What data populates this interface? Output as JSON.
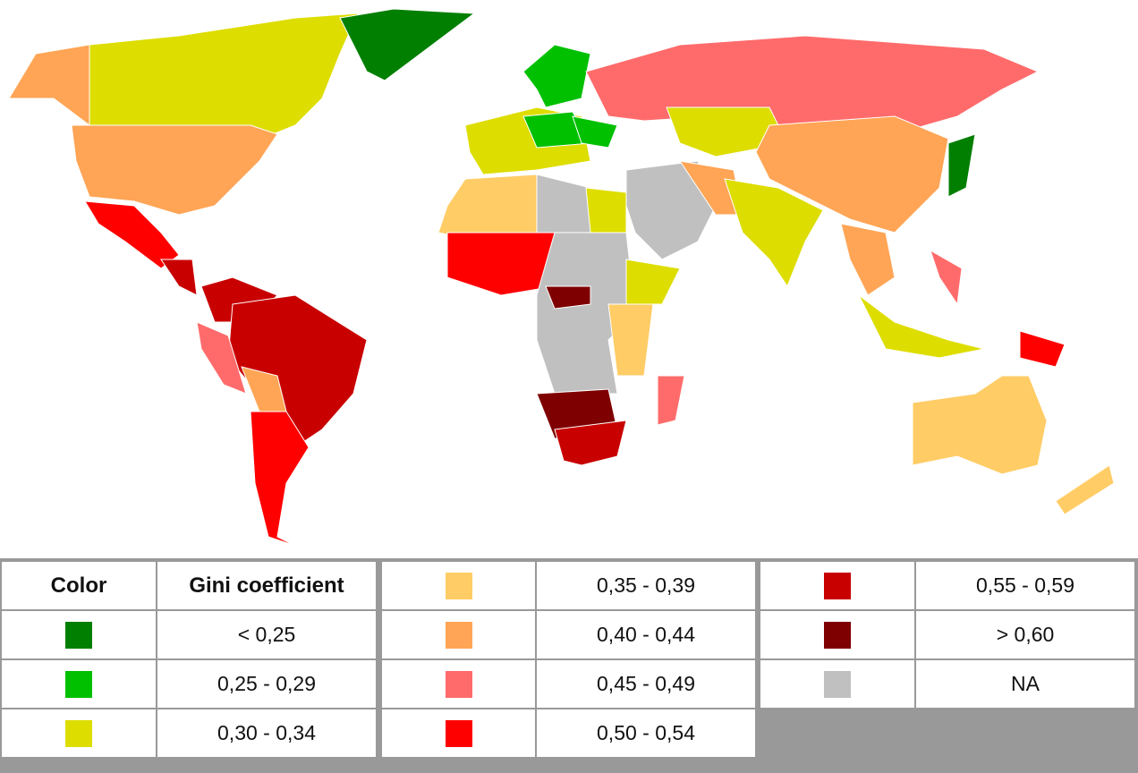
{
  "legend": {
    "header_color": "Color",
    "header_value": "Gini coefficient",
    "items": [
      {
        "key": "lt25",
        "label": "< 0,25",
        "color": "#007f00"
      },
      {
        "key": "g25",
        "label": "0,25 - 0,29",
        "color": "#00c000"
      },
      {
        "key": "g30",
        "label": "0,30 - 0,34",
        "color": "#dddd00"
      },
      {
        "key": "g35",
        "label": "0,35 - 0,39",
        "color": "#ffcc66"
      },
      {
        "key": "g40",
        "label": "0,40 - 0,44",
        "color": "#ffa555"
      },
      {
        "key": "g45",
        "label": "0,45 - 0,49",
        "color": "#ff6b6b"
      },
      {
        "key": "g50",
        "label": "0,50 - 0,54",
        "color": "#ff0000"
      },
      {
        "key": "g55",
        "label": "0,55 - 0,59",
        "color": "#c80000"
      },
      {
        "key": "gt60",
        "label": "> 0,60",
        "color": "#7f0000"
      },
      {
        "key": "na",
        "label": "NA",
        "color": "#c0c0c0"
      }
    ]
  }
}
